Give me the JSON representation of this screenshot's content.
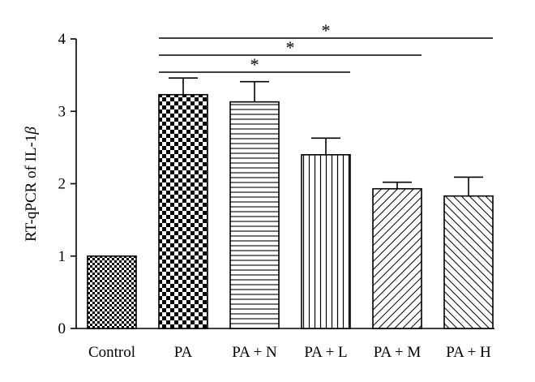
{
  "chart_data": {
    "type": "bar",
    "categories": [
      "Control",
      "PA",
      "PA + N",
      "PA + L",
      "PA + M",
      "PA + H"
    ],
    "values": [
      1.0,
      3.23,
      3.13,
      2.4,
      1.93,
      1.83
    ],
    "errors": [
      0,
      0.23,
      0.28,
      0.23,
      0.09,
      0.26
    ],
    "patterns": [
      "checker-small",
      "checker-large",
      "horizontal-lines",
      "vertical-lines",
      "diagonal-right",
      "diagonal-left"
    ],
    "ylabel_prefix": "RT-qPCR of IL-1",
    "ylabel_symbol": "β",
    "ylim": [
      0,
      4
    ],
    "yticks": [
      "0",
      "1",
      "2",
      "3",
      "4"
    ],
    "grid": false,
    "significance": [
      {
        "from": "PA",
        "to": "PA + L",
        "label": "*"
      },
      {
        "from": "PA",
        "to": "PA + M",
        "label": "*"
      },
      {
        "from": "PA",
        "to": "PA + H",
        "label": "*"
      }
    ]
  }
}
